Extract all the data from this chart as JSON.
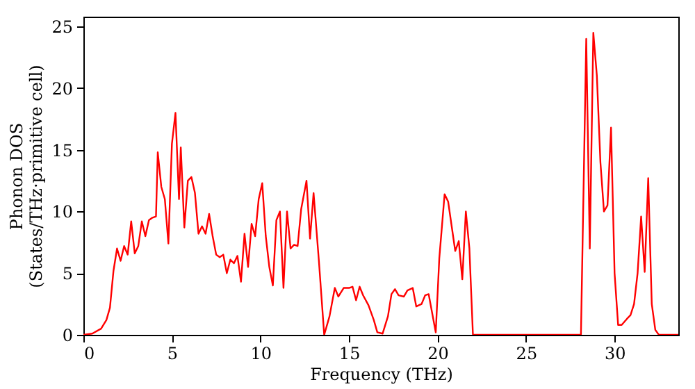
{
  "chart_data": {
    "type": "line",
    "xlabel": "Frequency (THz)",
    "ylabel": "Phonon DOS\n(States/THz·primitive cell)",
    "xlim": [
      0,
      33.6
    ],
    "ylim": [
      0,
      25.8
    ],
    "xticks": [
      0,
      5,
      10,
      15,
      20,
      25,
      30
    ],
    "yticks": [
      0,
      5,
      10,
      15,
      20,
      25
    ],
    "grid": false,
    "marker": "none",
    "line_style": "solid",
    "series": [
      {
        "color": "#ff0000",
        "x": [
          0,
          0.5,
          1,
          1.3,
          1.5,
          1.7,
          1.9,
          2.1,
          2.3,
          2.5,
          2.7,
          2.9,
          3.1,
          3.3,
          3.5,
          3.7,
          3.9,
          4.1,
          4.2,
          4.4,
          4.6,
          4.8,
          5.0,
          5.2,
          5.4,
          5.5,
          5.7,
          5.9,
          6.1,
          6.3,
          6.5,
          6.7,
          6.9,
          7.1,
          7.3,
          7.5,
          7.7,
          7.9,
          8.1,
          8.3,
          8.5,
          8.7,
          8.9,
          9.1,
          9.3,
          9.5,
          9.7,
          9.9,
          10.1,
          10.3,
          10.5,
          10.7,
          10.9,
          11.1,
          11.3,
          11.5,
          11.7,
          11.9,
          12.1,
          12.3,
          12.6,
          12.8,
          13.0,
          13.3,
          13.6,
          13.9,
          14.2,
          14.4,
          14.7,
          15.0,
          15.2,
          15.4,
          15.6,
          15.8,
          16.1,
          16.4,
          16.6,
          16.9,
          17.2,
          17.4,
          17.6,
          17.8,
          18.1,
          18.3,
          18.6,
          18.8,
          19.1,
          19.3,
          19.5,
          19.9,
          20.1,
          20.4,
          20.6,
          21.0,
          21.2,
          21.4,
          21.6,
          21.8,
          22.0,
          28.1,
          28.4,
          28.6,
          28.8,
          29.0,
          29.2,
          29.4,
          29.6,
          29.8,
          30.0,
          30.2,
          30.4,
          30.7,
          30.9,
          31.1,
          31.3,
          31.5,
          31.7,
          31.9,
          32.1,
          32.3,
          32.5,
          33.6
        ],
        "values": [
          0,
          0.1,
          0.5,
          1.2,
          2.2,
          5.2,
          7.0,
          6.0,
          7.2,
          6.5,
          9.2,
          6.6,
          7.2,
          9.2,
          8.0,
          9.3,
          9.5,
          9.6,
          14.8,
          12.0,
          11.0,
          7.4,
          15.5,
          18.0,
          11.0,
          15.2,
          8.7,
          12.5,
          12.8,
          11.5,
          8.2,
          8.8,
          8.2,
          9.8,
          8.0,
          6.5,
          6.3,
          6.5,
          5.0,
          6.1,
          5.8,
          6.4,
          4.3,
          8.2,
          5.5,
          9.0,
          8.0,
          11.0,
          12.3,
          8.0,
          5.5,
          4.0,
          9.3,
          10.0,
          3.8,
          10.0,
          7.0,
          7.3,
          7.2,
          10.2,
          12.5,
          7.8,
          11.5,
          6.0,
          0,
          1.5,
          3.8,
          3.1,
          3.8,
          3.8,
          3.9,
          2.8,
          3.9,
          3.2,
          2.4,
          1.2,
          0.2,
          0.1,
          1.5,
          3.3,
          3.7,
          3.2,
          3.1,
          3.6,
          3.8,
          2.3,
          2.5,
          3.2,
          3.3,
          0.2,
          6.2,
          11.4,
          10.8,
          6.8,
          7.6,
          4.5,
          10.0,
          7.0,
          0,
          0,
          24.0,
          7.0,
          24.5,
          21.0,
          14.0,
          10.0,
          10.5,
          16.8,
          5.0,
          0.8,
          0.8,
          1.3,
          1.6,
          2.5,
          5.0,
          9.6,
          5.1,
          12.7,
          2.5,
          0.4,
          0,
          0
        ]
      }
    ]
  }
}
